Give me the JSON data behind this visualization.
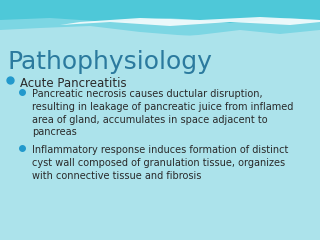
{
  "title": "Pathophysiology",
  "title_color": "#2b7a9e",
  "title_fontsize": 18,
  "bg_color": "#f0f4f5",
  "bullet1_text": "Acute Pancreatitis",
  "bullet1_fontsize": 8.5,
  "bullet2_text": "Pancreatic necrosis causes ductular disruption,\nresulting in leakage of pancreatic juice from inflamed\narea of gland, accumulates in space adjacent to\npancreas",
  "bullet2_fontsize": 7.0,
  "bullet3_text": "Inflammatory response induces formation of distinct\ncyst wall composed of granulation tissue, organizes\nwith connective tissue and fibrosis",
  "bullet3_fontsize": 7.0,
  "text_color": "#2a2a2a",
  "bullet_color": "#2299cc",
  "header_teal": "#4ec8d8",
  "header_light_teal": "#90dce8",
  "header_white": "#ffffff"
}
